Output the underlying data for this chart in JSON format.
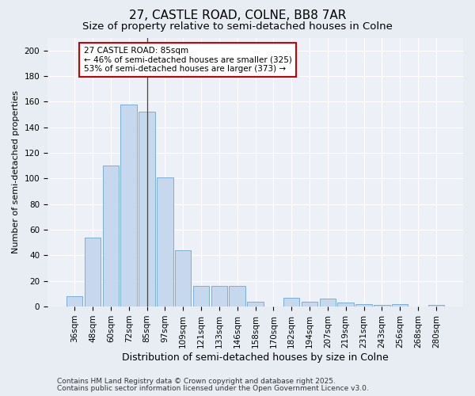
{
  "title1": "27, CASTLE ROAD, COLNE, BB8 7AR",
  "title2": "Size of property relative to semi-detached houses in Colne",
  "xlabel": "Distribution of semi-detached houses by size in Colne",
  "ylabel": "Number of semi-detached properties",
  "categories": [
    "36sqm",
    "48sqm",
    "60sqm",
    "72sqm",
    "85sqm",
    "97sqm",
    "109sqm",
    "121sqm",
    "133sqm",
    "146sqm",
    "158sqm",
    "170sqm",
    "182sqm",
    "194sqm",
    "207sqm",
    "219sqm",
    "231sqm",
    "243sqm",
    "256sqm",
    "268sqm",
    "280sqm"
  ],
  "values": [
    8,
    54,
    110,
    158,
    152,
    101,
    44,
    16,
    16,
    16,
    4,
    0,
    7,
    4,
    6,
    3,
    2,
    1,
    2,
    0,
    1
  ],
  "bar_color": "#c5d8ed",
  "bar_edge_color": "#7aafd4",
  "vline_index": 4,
  "annotation_line1": "27 CASTLE ROAD: 85sqm",
  "annotation_line2": "← 46% of semi-detached houses are smaller (325)",
  "annotation_line3": "53% of semi-detached houses are larger (373) →",
  "annotation_box_color": "#ffffff",
  "annotation_box_edge": "#cc0000",
  "ylim": [
    0,
    210
  ],
  "yticks": [
    0,
    20,
    40,
    60,
    80,
    100,
    120,
    140,
    160,
    180,
    200
  ],
  "bg_color": "#e8edf4",
  "plot_bg_color": "#edf1f7",
  "grid_color": "#ffffff",
  "footer1": "Contains HM Land Registry data © Crown copyright and database right 2025.",
  "footer2": "Contains public sector information licensed under the Open Government Licence v3.0.",
  "title1_fontsize": 11,
  "title2_fontsize": 9.5,
  "xlabel_fontsize": 9,
  "ylabel_fontsize": 8,
  "tick_fontsize": 7.5,
  "annot_fontsize": 7.5,
  "footer_fontsize": 6.5
}
